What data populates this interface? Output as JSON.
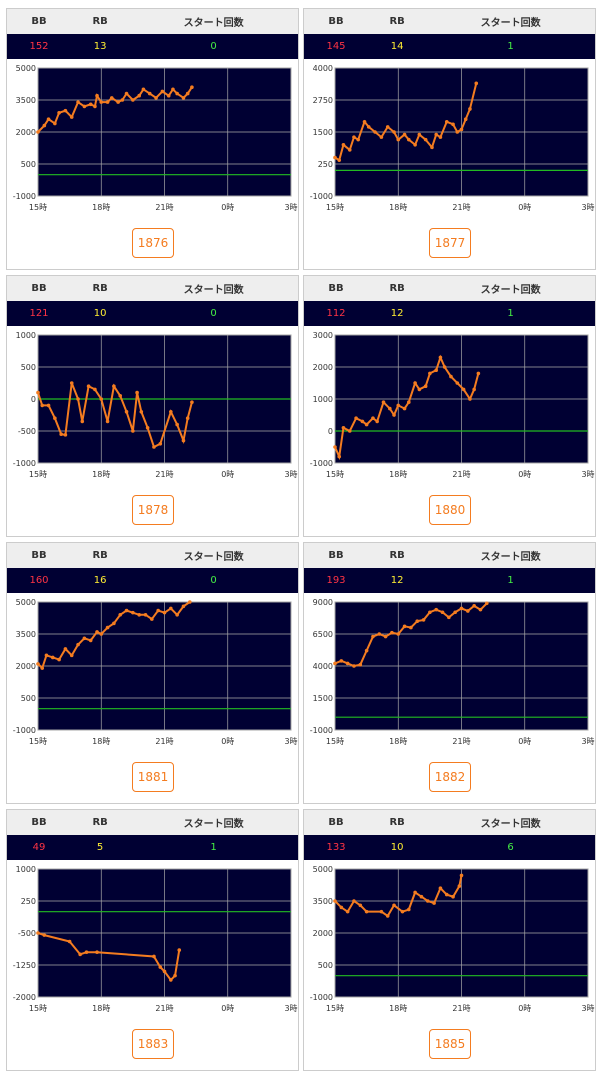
{
  "panels": [
    {
      "headers": [
        "BB",
        "RB",
        "スタート回数"
      ],
      "cells": [
        152,
        13,
        0
      ],
      "button": "1876"
    },
    {
      "headers": [
        "BB",
        "RB",
        "スタート回数"
      ],
      "cells": [
        145,
        14,
        1
      ],
      "button": "1877"
    },
    {
      "headers": [
        "BB",
        "RB",
        "スタート回数"
      ],
      "cells": [
        121,
        10,
        0
      ],
      "button": "1878"
    },
    {
      "headers": [
        "BB",
        "RB",
        "スタート回数"
      ],
      "cells": [
        112,
        12,
        1
      ],
      "button": "1880"
    },
    {
      "headers": [
        "BB",
        "RB",
        "スタート回数"
      ],
      "cells": [
        160,
        16,
        0
      ],
      "button": "1881"
    },
    {
      "headers": [
        "BB",
        "RB",
        "スタート回数"
      ],
      "cells": [
        193,
        12,
        1
      ],
      "button": "1882"
    },
    {
      "headers": [
        "BB",
        "RB",
        "スタート回数"
      ],
      "cells": [
        49,
        5,
        1
      ],
      "button": "1883"
    },
    {
      "headers": [
        "BB",
        "RB",
        "スタート回数"
      ],
      "cells": [
        133,
        10,
        6
      ],
      "button": "1885"
    }
  ],
  "chart_data": [
    {
      "type": "line",
      "color": "#f47c20",
      "grid": true,
      "reference_line": 0,
      "reference_color": "#22bb22",
      "xlim": [
        15,
        27
      ],
      "xticks": [
        {
          "value": 15,
          "label": "15時"
        },
        {
          "value": 18,
          "label": "18時"
        },
        {
          "value": 21,
          "label": "21時"
        },
        {
          "value": 24,
          "label": "0時"
        },
        {
          "value": 27,
          "label": "3時"
        }
      ],
      "ylim": [
        -1000,
        5000
      ],
      "yticks": [
        -1000,
        500,
        2000,
        3500,
        5000
      ],
      "x": [
        15,
        15.3,
        15.5,
        15.8,
        16,
        16.3,
        16.6,
        16.9,
        17.2,
        17.5,
        17.7,
        17.8,
        18,
        18.3,
        18.5,
        18.8,
        19,
        19.2,
        19.5,
        19.8,
        20,
        20.3,
        20.6,
        20.9,
        21.2,
        21.4,
        21.6,
        21.9,
        22.1,
        22.3
      ],
      "values": [
        2000,
        2300,
        2600,
        2400,
        2900,
        3000,
        2700,
        3400,
        3200,
        3300,
        3200,
        3700,
        3400,
        3400,
        3600,
        3400,
        3500,
        3800,
        3500,
        3700,
        4000,
        3800,
        3600,
        3900,
        3700,
        4000,
        3800,
        3600,
        3800,
        4100
      ]
    },
    {
      "type": "line",
      "color": "#f47c20",
      "grid": true,
      "reference_line": 0,
      "reference_color": "#22bb22",
      "xlim": [
        15,
        27
      ],
      "xticks": [
        {
          "value": 15,
          "label": "15時"
        },
        {
          "value": 18,
          "label": "18時"
        },
        {
          "value": 21,
          "label": "21時"
        },
        {
          "value": 24,
          "label": "0時"
        },
        {
          "value": 27,
          "label": "3時"
        }
      ],
      "ylim": [
        -1000,
        4000
      ],
      "yticks": [
        -1000,
        250,
        1500,
        2750,
        4000
      ],
      "x": [
        15,
        15.2,
        15.4,
        15.7,
        15.9,
        16.1,
        16.4,
        16.6,
        16.9,
        17.2,
        17.5,
        17.8,
        18,
        18.3,
        18.5,
        18.8,
        19,
        19.3,
        19.6,
        19.8,
        20,
        20.3,
        20.6,
        20.8,
        21,
        21.2,
        21.4,
        21.7
      ],
      "values": [
        500,
        400,
        1000,
        800,
        1300,
        1200,
        1900,
        1700,
        1500,
        1300,
        1700,
        1500,
        1200,
        1400,
        1200,
        1000,
        1400,
        1200,
        900,
        1400,
        1300,
        1900,
        1800,
        1500,
        1600,
        2000,
        2400,
        3400
      ]
    },
    {
      "type": "line",
      "color": "#f47c20",
      "grid": true,
      "reference_line": 0,
      "reference_color": "#22bb22",
      "xlim": [
        15,
        27
      ],
      "xticks": [
        {
          "value": 15,
          "label": "15時"
        },
        {
          "value": 18,
          "label": "18時"
        },
        {
          "value": 21,
          "label": "21時"
        },
        {
          "value": 24,
          "label": "0時"
        },
        {
          "value": 27,
          "label": "3時"
        }
      ],
      "ylim": [
        -1000,
        1000
      ],
      "yticks": [
        -1000,
        -500,
        0,
        500,
        1000
      ],
      "x": [
        15,
        15.2,
        15.5,
        15.8,
        16.1,
        16.3,
        16.6,
        16.9,
        17.1,
        17.4,
        17.7,
        18,
        18.3,
        18.6,
        18.9,
        19.2,
        19.5,
        19.7,
        19.9,
        20.2,
        20.5,
        20.8,
        21.3,
        21.6,
        21.9,
        22.1,
        22.3
      ],
      "values": [
        100,
        -100,
        -100,
        -300,
        -550,
        -560,
        250,
        0,
        -350,
        200,
        150,
        0,
        -350,
        200,
        50,
        -200,
        -500,
        100,
        -200,
        -450,
        -750,
        -700,
        -200,
        -400,
        -650,
        -300,
        -50
      ]
    },
    {
      "type": "line",
      "color": "#f47c20",
      "grid": true,
      "reference_line": 0,
      "reference_color": "#22bb22",
      "xlim": [
        15,
        27
      ],
      "xticks": [
        {
          "value": 15,
          "label": "15時"
        },
        {
          "value": 18,
          "label": "18時"
        },
        {
          "value": 21,
          "label": "21時"
        },
        {
          "value": 24,
          "label": "0時"
        },
        {
          "value": 27,
          "label": "3時"
        }
      ],
      "ylim": [
        -1000,
        3000
      ],
      "yticks": [
        -1000,
        0,
        1000,
        2000,
        3000
      ],
      "x": [
        15,
        15.2,
        15.4,
        15.7,
        16,
        16.3,
        16.5,
        16.8,
        17,
        17.3,
        17.6,
        17.8,
        18,
        18.3,
        18.5,
        18.8,
        19,
        19.3,
        19.5,
        19.8,
        20,
        20.2,
        20.5,
        20.8,
        21.1,
        21.4,
        21.6,
        21.8
      ],
      "values": [
        -500,
        -800,
        100,
        0,
        400,
        300,
        200,
        400,
        300,
        900,
        700,
        500,
        800,
        700,
        900,
        1500,
        1300,
        1400,
        1800,
        1900,
        2300,
        2000,
        1700,
        1500,
        1300,
        1000,
        1300,
        1800
      ]
    },
    {
      "type": "line",
      "color": "#f47c20",
      "grid": true,
      "reference_line": 0,
      "reference_color": "#22bb22",
      "xlim": [
        15,
        27
      ],
      "xticks": [
        {
          "value": 15,
          "label": "15時"
        },
        {
          "value": 18,
          "label": "18時"
        },
        {
          "value": 21,
          "label": "21時"
        },
        {
          "value": 24,
          "label": "0時"
        },
        {
          "value": 27,
          "label": "3時"
        }
      ],
      "ylim": [
        -1000,
        5000
      ],
      "yticks": [
        -1000,
        500,
        2000,
        3500,
        5000
      ],
      "x": [
        15,
        15.2,
        15.4,
        15.7,
        16,
        16.3,
        16.6,
        16.9,
        17.2,
        17.5,
        17.8,
        18,
        18.3,
        18.6,
        18.9,
        19.2,
        19.5,
        19.8,
        20.1,
        20.4,
        20.7,
        21,
        21.3,
        21.6,
        21.9,
        22.2
      ],
      "values": [
        2100,
        1900,
        2500,
        2400,
        2300,
        2800,
        2500,
        3000,
        3300,
        3200,
        3600,
        3500,
        3800,
        4000,
        4400,
        4600,
        4500,
        4400,
        4400,
        4200,
        4600,
        4500,
        4700,
        4400,
        4800,
        5000
      ]
    },
    {
      "type": "line",
      "color": "#f47c20",
      "grid": true,
      "reference_line": 0,
      "reference_color": "#22bb22",
      "xlim": [
        15,
        27
      ],
      "xticks": [
        {
          "value": 15,
          "label": "15時"
        },
        {
          "value": 18,
          "label": "18時"
        },
        {
          "value": 21,
          "label": "21時"
        },
        {
          "value": 24,
          "label": "0時"
        },
        {
          "value": 27,
          "label": "3時"
        }
      ],
      "ylim": [
        -1000,
        9000
      ],
      "yticks": [
        -1000,
        1500,
        4000,
        6500,
        9000
      ],
      "x": [
        15,
        15.3,
        15.6,
        15.9,
        16.2,
        16.5,
        16.8,
        17.1,
        17.4,
        17.7,
        18,
        18.3,
        18.6,
        18.9,
        19.2,
        19.5,
        19.8,
        20.1,
        20.4,
        20.7,
        21,
        21.3,
        21.6,
        21.9,
        22.2
      ],
      "values": [
        4200,
        4400,
        4200,
        4000,
        4100,
        5200,
        6300,
        6500,
        6300,
        6600,
        6500,
        7100,
        7000,
        7500,
        7600,
        8200,
        8400,
        8200,
        7800,
        8200,
        8500,
        8300,
        8700,
        8400,
        8900
      ]
    },
    {
      "type": "line",
      "color": "#f47c20",
      "grid": true,
      "reference_line": 0,
      "reference_color": "#22bb22",
      "xlim": [
        15,
        27
      ],
      "xticks": [
        {
          "value": 15,
          "label": "15時"
        },
        {
          "value": 18,
          "label": "18時"
        },
        {
          "value": 21,
          "label": "21時"
        },
        {
          "value": 24,
          "label": "0時"
        },
        {
          "value": 27,
          "label": "3時"
        }
      ],
      "ylim": [
        -2000,
        1000
      ],
      "yticks": [
        -2000,
        -1250,
        -500,
        250,
        1000
      ],
      "x": [
        15,
        15.3,
        16.5,
        17,
        17.3,
        17.8,
        20.5,
        20.8,
        21,
        21.3,
        21.5,
        21.7
      ],
      "values": [
        -500,
        -550,
        -700,
        -1000,
        -950,
        -950,
        -1050,
        -1300,
        -1400,
        -1600,
        -1500,
        -900
      ]
    },
    {
      "type": "line",
      "color": "#f47c20",
      "grid": true,
      "reference_line": 0,
      "reference_color": "#22bb22",
      "xlim": [
        15,
        27
      ],
      "xticks": [
        {
          "value": 15,
          "label": "15時"
        },
        {
          "value": 18,
          "label": "18時"
        },
        {
          "value": 21,
          "label": "21時"
        },
        {
          "value": 24,
          "label": "0時"
        },
        {
          "value": 27,
          "label": "3時"
        }
      ],
      "ylim": [
        -1000,
        5000
      ],
      "yticks": [
        -1000,
        500,
        2000,
        3500,
        5000
      ],
      "x": [
        15,
        15.3,
        15.6,
        15.9,
        16.2,
        16.5,
        17.2,
        17.5,
        17.8,
        18.2,
        18.5,
        18.8,
        19.1,
        19.4,
        19.7,
        20,
        20.3,
        20.6,
        20.9,
        21
      ],
      "values": [
        3500,
        3200,
        3000,
        3500,
        3300,
        3000,
        3000,
        2800,
        3300,
        3000,
        3100,
        3900,
        3700,
        3500,
        3400,
        4100,
        3800,
        3700,
        4200,
        4700
      ]
    }
  ]
}
